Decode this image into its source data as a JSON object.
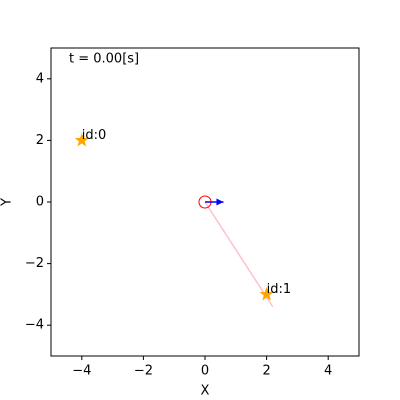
{
  "chart_data": {
    "type": "scatter",
    "annotation": "t = 0.00[s]",
    "xlabel": "X",
    "ylabel": "Y",
    "xlim": [
      -5,
      5
    ],
    "ylim": [
      -5,
      5
    ],
    "xticks": [
      {
        "value": -4,
        "label": "−4"
      },
      {
        "value": -2,
        "label": "−2"
      },
      0,
      2,
      4
    ],
    "yticks": [
      {
        "value": -4,
        "label": "−4"
      },
      {
        "value": -2,
        "label": "−2"
      },
      0,
      2,
      4
    ],
    "landmarks": {
      "x": [
        -4,
        2
      ],
      "y": [
        2,
        -3
      ],
      "labels": [
        "id:0",
        "id:1"
      ],
      "color": "orange"
    },
    "robot": {
      "x": 0,
      "y": 0,
      "color": "red"
    },
    "heading": {
      "dx": 0.6,
      "dy": 0,
      "color": "blue"
    },
    "observation_line": {
      "x": [
        0,
        2.2
      ],
      "y": [
        0,
        -3.4
      ],
      "color": "pink"
    }
  }
}
